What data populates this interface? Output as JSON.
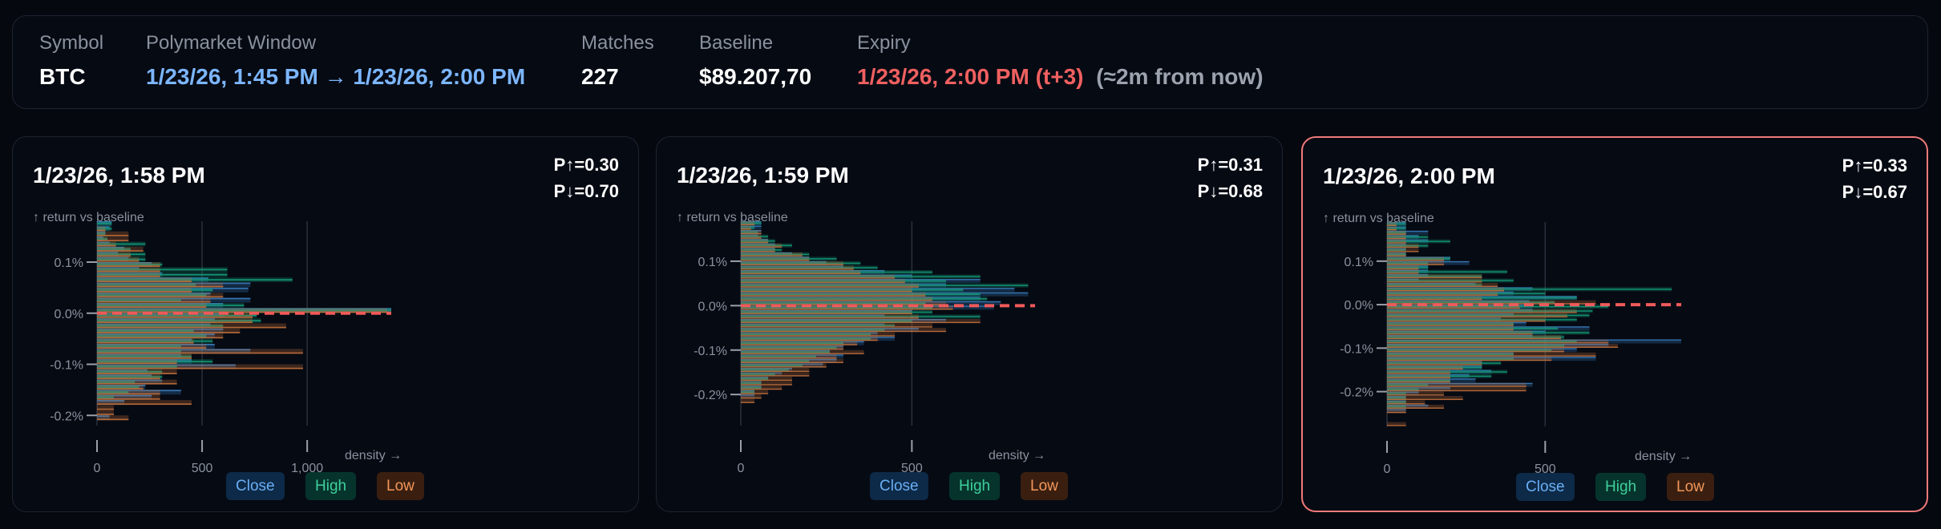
{
  "header": {
    "symbol": {
      "label": "Symbol",
      "value": "BTC"
    },
    "window": {
      "label": "Polymarket Window",
      "value": "1/23/26, 1:45 PM → 1/23/26, 2:00 PM"
    },
    "matches": {
      "label": "Matches",
      "value": "227"
    },
    "baseline": {
      "label": "Baseline",
      "value": "$89.207,70"
    },
    "expiry": {
      "label": "Expiry",
      "value": "1/23/26, 2:00 PM (t+3)",
      "relative": "(≈2m from now)"
    }
  },
  "colors": {
    "close": "#3b82c4",
    "high": "#14a37f",
    "low": "#c8733c",
    "baseline_line": "#f05a5a",
    "window": "#7cb6ff",
    "expiry": "#f06060"
  },
  "legend": {
    "close": "Close",
    "high": "High",
    "low": "Low"
  },
  "chart_data": [
    {
      "type": "bar",
      "orientation": "horizontal",
      "title": "1/23/26, 1:58 PM",
      "p_up": "P↑=0.30",
      "p_down": "P↓=0.70",
      "ylabel": "↑ return vs baseline",
      "xlabel": "density →",
      "ylim": [
        0.18,
        -0.22
      ],
      "bin_width": 0.01,
      "xlim": [
        0,
        1400
      ],
      "yticks": [
        "0.1%",
        "0.0%",
        "-0.1%",
        "-0.2%"
      ],
      "ytick_values": [
        0.1,
        0,
        -0.1,
        -0.2
      ],
      "xticks": [
        "0",
        "500",
        "1,000"
      ],
      "xtick_values": [
        0,
        500,
        1000
      ],
      "baseline_value": 0,
      "series": [
        {
          "name": "Close",
          "values": [
            70,
            60,
            40,
            30,
            60,
            130,
            100,
            150,
            260,
            200,
            310,
            530,
            730,
            720,
            540,
            730,
            600,
            1400,
            600,
            560,
            540,
            600,
            560,
            450,
            560,
            730,
            400,
            450,
            660,
            240,
            260,
            310,
            230,
            400,
            260,
            130,
            0,
            0,
            60,
            0
          ]
        },
        {
          "name": "High",
          "values": [
            70,
            70,
            40,
            50,
            230,
            160,
            230,
            230,
            310,
            620,
            620,
            930,
            470,
            550,
            520,
            400,
            700,
            1400,
            760,
            780,
            600,
            460,
            520,
            550,
            400,
            400,
            450,
            550,
            380,
            310,
            310,
            180,
            200,
            150,
            80,
            0,
            0,
            0,
            0,
            0
          ]
        },
        {
          "name": "Low",
          "values": [
            0,
            40,
            150,
            150,
            90,
            220,
            160,
            200,
            300,
            300,
            300,
            450,
            600,
            450,
            600,
            540,
            520,
            1380,
            740,
            740,
            900,
            680,
            600,
            460,
            520,
            980,
            450,
            380,
            980,
            380,
            300,
            380,
            220,
            300,
            300,
            450,
            80,
            80,
            150,
            0
          ]
        }
      ]
    },
    {
      "type": "bar",
      "orientation": "horizontal",
      "title": "1/23/26, 1:59 PM",
      "p_up": "P↑=0.31",
      "p_down": "P↓=0.68",
      "ylabel": "↑ return vs baseline",
      "xlabel": "density →",
      "ylim": [
        0.19,
        -0.27
      ],
      "bin_width": 0.01,
      "xlim": [
        0,
        860
      ],
      "yticks": [
        "0.1%",
        "0.0%",
        "-0.1%",
        "-0.2%"
      ],
      "ytick_values": [
        0.1,
        0,
        -0.1,
        -0.2
      ],
      "xticks": [
        "0",
        "500"
      ],
      "xtick_values": [
        0,
        500
      ],
      "baseline_value": 0,
      "series": [
        {
          "name": "Close",
          "values": [
            60,
            60,
            60,
            50,
            80,
            100,
            100,
            150,
            200,
            250,
            300,
            420,
            500,
            700,
            600,
            800,
            840,
            700,
            760,
            740,
            500,
            420,
            600,
            420,
            520,
            400,
            450,
            360,
            300,
            260,
            300,
            280,
            240,
            150,
            120,
            80,
            60,
            60,
            40,
            40,
            0,
            0,
            0,
            0,
            0,
            0
          ]
        },
        {
          "name": "High",
          "values": [
            60,
            40,
            50,
            80,
            100,
            150,
            120,
            200,
            280,
            350,
            400,
            560,
            700,
            600,
            840,
            650,
            700,
            720,
            540,
            560,
            560,
            700,
            500,
            450,
            420,
            380,
            380,
            300,
            280,
            260,
            220,
            200,
            180,
            140,
            100,
            80,
            60,
            60,
            40,
            0,
            0,
            0,
            0,
            0,
            0,
            0
          ]
        },
        {
          "name": "Low",
          "values": [
            40,
            30,
            60,
            60,
            80,
            120,
            100,
            180,
            200,
            300,
            330,
            350,
            450,
            480,
            520,
            500,
            540,
            560,
            600,
            620,
            500,
            520,
            700,
            560,
            600,
            450,
            400,
            340,
            300,
            360,
            280,
            300,
            250,
            200,
            200,
            150,
            150,
            120,
            80,
            60,
            40,
            0,
            0,
            0,
            0,
            0
          ]
        }
      ]
    },
    {
      "type": "bar",
      "orientation": "horizontal",
      "title": "1/23/26, 2:00 PM",
      "p_up": "P↑=0.33",
      "p_down": "P↓=0.67",
      "ylabel": "↑ return vs baseline",
      "xlabel": "density →",
      "ylim": [
        0.19,
        -0.28
      ],
      "bin_width": 0.01,
      "xlim": [
        0,
        930
      ],
      "yticks": [
        "0.1%",
        "0.0%",
        "-0.1%",
        "-0.2%"
      ],
      "ytick_values": [
        0.1,
        0,
        -0.1,
        -0.2
      ],
      "xticks": [
        "0",
        "500"
      ],
      "xtick_values": [
        0,
        500
      ],
      "baseline_value": 0,
      "highlighted": true,
      "series": [
        {
          "name": "Close",
          "values": [
            60,
            60,
            130,
            100,
            130,
            60,
            60,
            60,
            200,
            260,
            130,
            130,
            130,
            100,
            280,
            460,
            400,
            600,
            450,
            460,
            460,
            400,
            360,
            440,
            640,
            500,
            460,
            930,
            700,
            600,
            400,
            660,
            300,
            300,
            330,
            260,
            280,
            460,
            200,
            100,
            60,
            60,
            130,
            60,
            0,
            0,
            0
          ]
        },
        {
          "name": "High",
          "values": [
            60,
            60,
            60,
            130,
            200,
            130,
            60,
            60,
            200,
            130,
            130,
            380,
            300,
            400,
            300,
            900,
            500,
            600,
            530,
            700,
            650,
            640,
            600,
            400,
            540,
            640,
            560,
            600,
            560,
            520,
            400,
            400,
            360,
            300,
            380,
            330,
            200,
            130,
            100,
            60,
            60,
            60,
            60,
            0,
            0,
            0,
            0
          ]
        },
        {
          "name": "Low",
          "values": [
            30,
            30,
            60,
            60,
            60,
            100,
            100,
            60,
            180,
            180,
            100,
            100,
            300,
            300,
            350,
            370,
            350,
            300,
            660,
            420,
            600,
            570,
            500,
            400,
            400,
            460,
            550,
            700,
            730,
            560,
            660,
            520,
            300,
            240,
            200,
            200,
            200,
            440,
            440,
            180,
            240,
            120,
            180,
            60,
            0,
            0,
            60
          ]
        }
      ]
    }
  ]
}
